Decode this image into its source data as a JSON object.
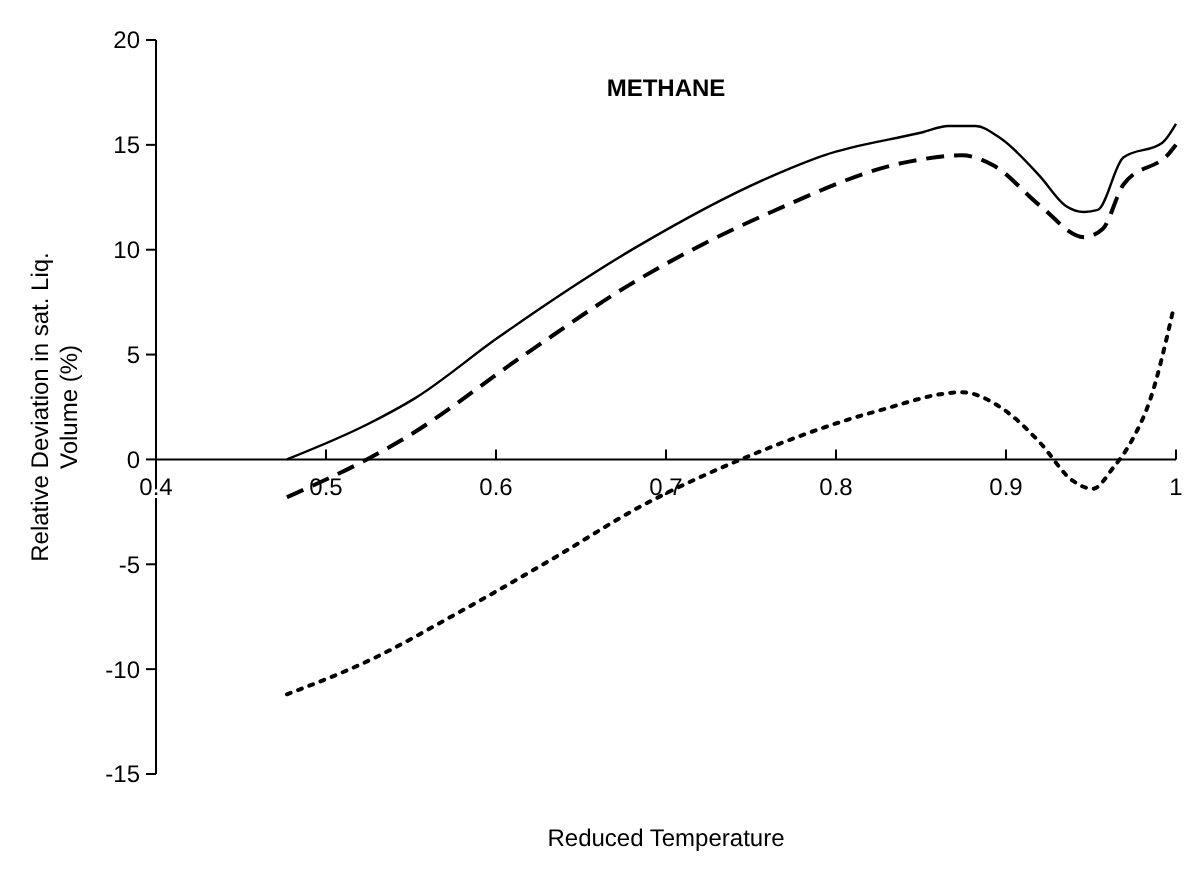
{
  "chart_data": {
    "type": "line",
    "title": "METHANE",
    "xlabel": "Reduced Temperature",
    "ylabel": "Relative Deviation in sat. Liq. Volume (%)",
    "xlim": [
      0.4,
      1
    ],
    "ylim": [
      -15,
      20
    ],
    "xticks": [
      0.4,
      0.5,
      0.6,
      0.7,
      0.8,
      0.9,
      1
    ],
    "yticks": [
      -15,
      -10,
      -5,
      0,
      5,
      10,
      15,
      20
    ],
    "marker": "none",
    "series": [
      {
        "color": "#000000",
        "line_style": "solid",
        "x": [
          0.477,
          0.525,
          0.552,
          0.601,
          0.682,
          0.762,
          0.793,
          0.851,
          0.866,
          0.882,
          0.897,
          0.92,
          0.935,
          0.946,
          0.954,
          0.969,
          0.992,
          1
        ],
        "values": [
          0,
          1.7,
          2.9,
          5.8,
          10.1,
          13.5,
          14.5,
          15.6,
          15.9,
          15.9,
          15.3,
          13.5,
          12.1,
          11.8,
          11.9,
          14.4,
          15.1,
          16
        ]
      },
      {
        "color": "#000000",
        "line_style": "dashed",
        "x": [
          0.477,
          0.524,
          0.544,
          0.617,
          0.678,
          0.762,
          0.843,
          0.874,
          0.893,
          0.92,
          0.946,
          0.957,
          0.969,
          0.996,
          1
        ],
        "values": [
          -1.8,
          0,
          0.9,
          5,
          8.3,
          11.8,
          14.2,
          14.5,
          14,
          12.1,
          10.6,
          11,
          13.1,
          14.6,
          15
        ]
      },
      {
        "color": "#000000",
        "line_style": "dotted",
        "x": [
          0.477,
          0.525,
          0.578,
          0.632,
          0.686,
          0.744,
          0.824,
          0.874,
          0.9,
          0.92,
          0.939,
          0.951,
          0.963,
          0.974,
          0.985,
          0.998
        ],
        "values": [
          -11.2,
          -9.6,
          -7.3,
          -4.8,
          -2.2,
          0,
          2.3,
          3.2,
          2.3,
          0.8,
          -1,
          -1.4,
          -0.4,
          0.9,
          2.9,
          7
        ]
      }
    ]
  }
}
